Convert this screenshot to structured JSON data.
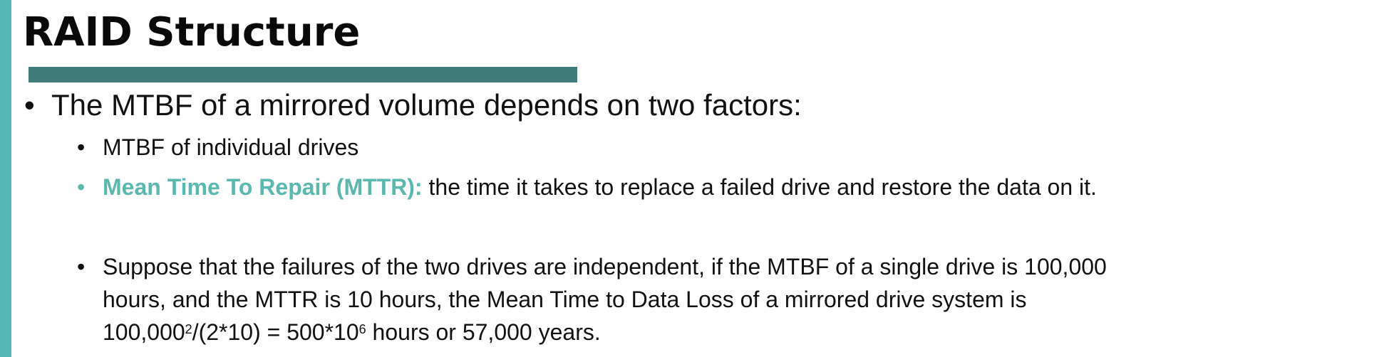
{
  "slide": {
    "title": "RAID Structure",
    "colors": {
      "accent_left": "#57b9b6",
      "title_bar": "#3f7b7b",
      "highlight": "#5ab8ae",
      "text": "#111111"
    },
    "bullet_symbol": "•",
    "main_bullet": "The MTBF of a mirrored volume depends on two factors:",
    "sub_bullets": [
      {
        "text": "MTBF of individual drives"
      },
      {
        "highlight": "Mean Time To Repair (MTTR):",
        "text": " the time it takes to replace a failed drive and restore the data on it."
      }
    ],
    "example": {
      "line1": "Suppose that the failures of the two drives are independent, if the MTBF of a single drive is 100,000",
      "line2": "hours, and the MTTR is 10 hours, the Mean Time to Data Loss of a mirrored drive system is",
      "line3_part1": "100,000",
      "line3_sup1": "2",
      "line3_part2": "/(2*10) = 500*10",
      "line3_sup2": "6",
      "line3_part3": " hours or 57,000 years."
    }
  }
}
